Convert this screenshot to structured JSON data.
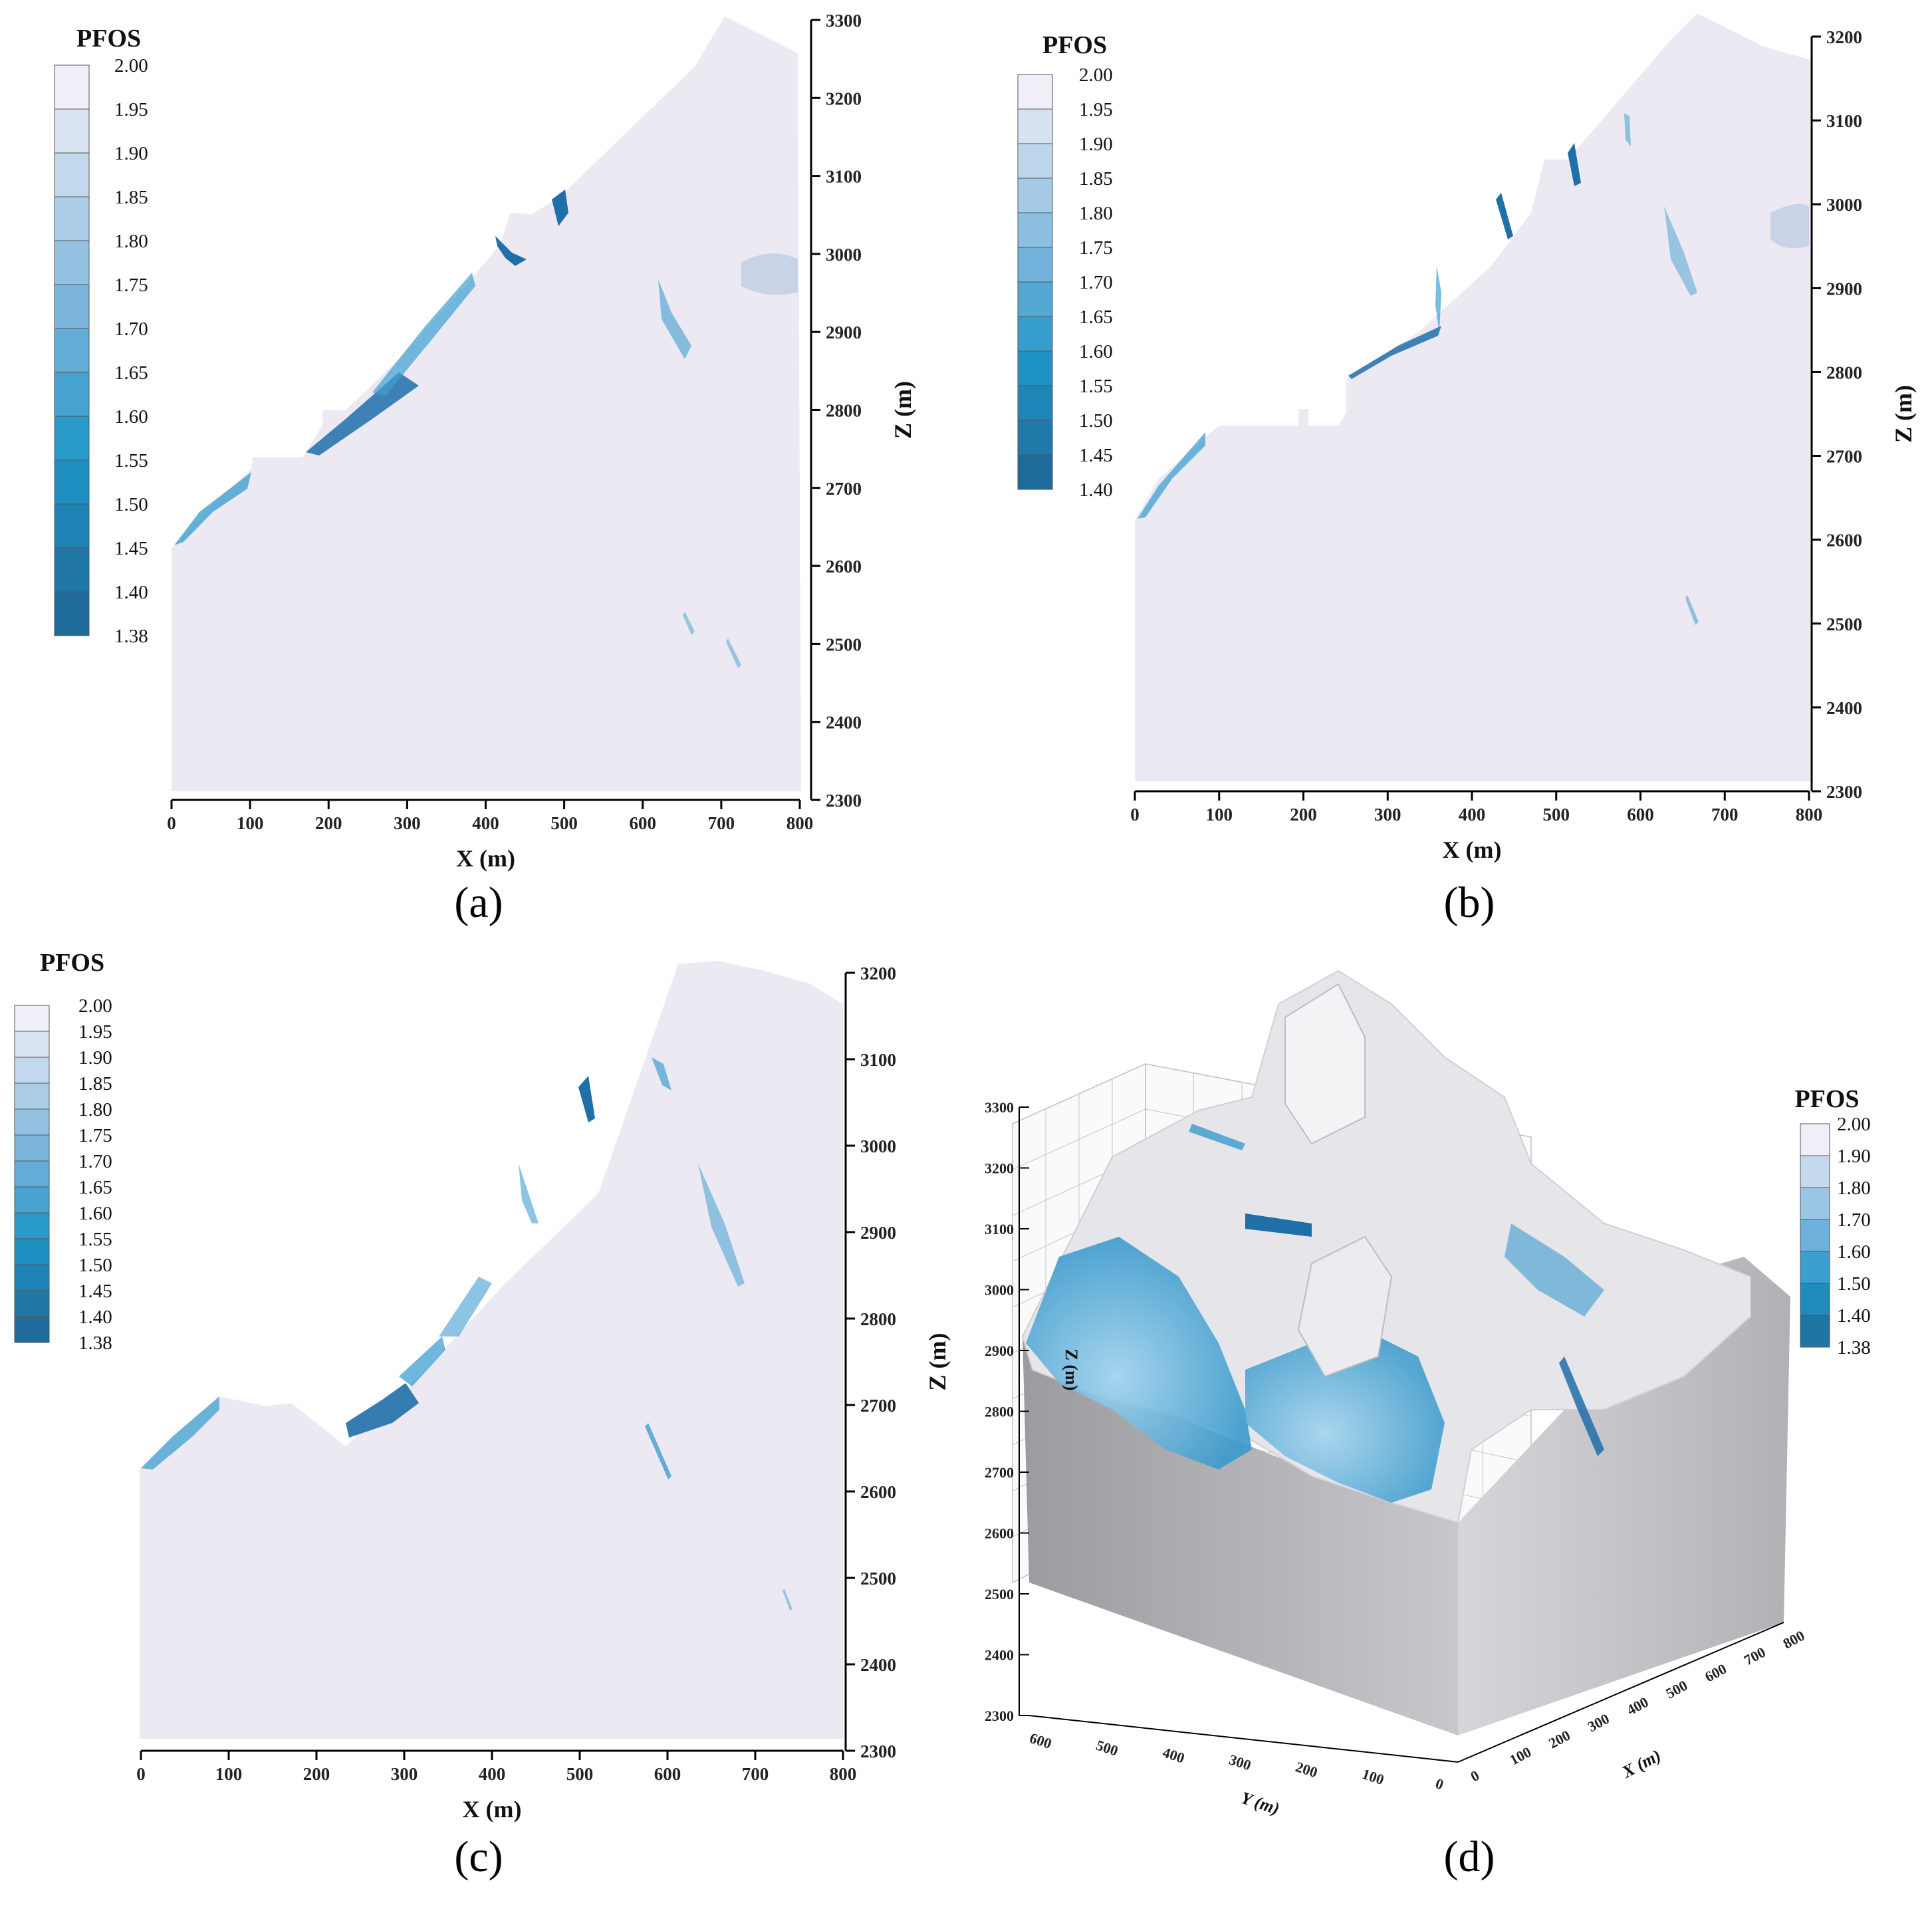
{
  "colorbar_title": "PFOS",
  "x_axis_label": "X (m)",
  "z_axis_label": "Z (m)",
  "panels": [
    {
      "id": "a",
      "caption": "(a)",
      "x_ticks": [
        "0",
        "100",
        "200",
        "300",
        "400",
        "500",
        "600",
        "700",
        "800"
      ],
      "z_ticks": [
        "3300",
        "3200",
        "3100",
        "3000",
        "2900",
        "2800",
        "2700",
        "2600",
        "2500",
        "2400",
        "2300"
      ],
      "colorbar": [
        "2.00",
        "1.95",
        "1.90",
        "1.85",
        "1.80",
        "1.75",
        "1.70",
        "1.65",
        "1.60",
        "1.55",
        "1.50",
        "1.45",
        "1.40",
        "1.38"
      ]
    },
    {
      "id": "b",
      "caption": "(b)",
      "x_ticks": [
        "0",
        "100",
        "200",
        "300",
        "400",
        "500",
        "600",
        "700",
        "800"
      ],
      "z_ticks": [
        "3200",
        "3100",
        "3000",
        "2900",
        "2800",
        "2700",
        "2600",
        "2500",
        "2400",
        "2300"
      ],
      "colorbar": [
        "2.00",
        "1.95",
        "1.90",
        "1.85",
        "1.80",
        "1.75",
        "1.70",
        "1.65",
        "1.60",
        "1.55",
        "1.50",
        "1.45",
        "1.40"
      ]
    },
    {
      "id": "c",
      "caption": "(c)",
      "x_ticks": [
        "0",
        "100",
        "200",
        "300",
        "400",
        "500",
        "600",
        "700",
        "800"
      ],
      "z_ticks": [
        "3200",
        "3100",
        "3000",
        "2900",
        "2800",
        "2700",
        "2600",
        "2500",
        "2400",
        "2300"
      ],
      "colorbar": [
        "2.00",
        "1.95",
        "1.90",
        "1.85",
        "1.80",
        "1.75",
        "1.70",
        "1.65",
        "1.60",
        "1.55",
        "1.50",
        "1.45",
        "1.40",
        "1.38"
      ]
    },
    {
      "id": "d",
      "caption": "(d)",
      "z_ticks": [
        "3300",
        "3200",
        "3100",
        "3000",
        "2900",
        "2800",
        "2700",
        "2600",
        "2500",
        "2400",
        "2300"
      ],
      "x_ticks": [
        "0",
        "100",
        "200",
        "300",
        "400",
        "500",
        "600",
        "700",
        "800"
      ],
      "y_ticks": [
        "600",
        "500",
        "400",
        "300",
        "200",
        "100",
        "0"
      ],
      "z_label": "Z (m)",
      "x_label": "X (m)",
      "y_label": "Y (m)",
      "colorbar": [
        "2.00",
        "1.90",
        "1.80",
        "1.70",
        "1.60",
        "1.50",
        "1.40",
        "1.38"
      ]
    }
  ],
  "colors": {
    "slope_fill": "#ede9f3",
    "low_pfos": "#1f6fa8",
    "mid_pfos": "#3f9fd0",
    "high_pfos": "#c9d3e8",
    "block_grey": "#a9a9ad"
  }
}
